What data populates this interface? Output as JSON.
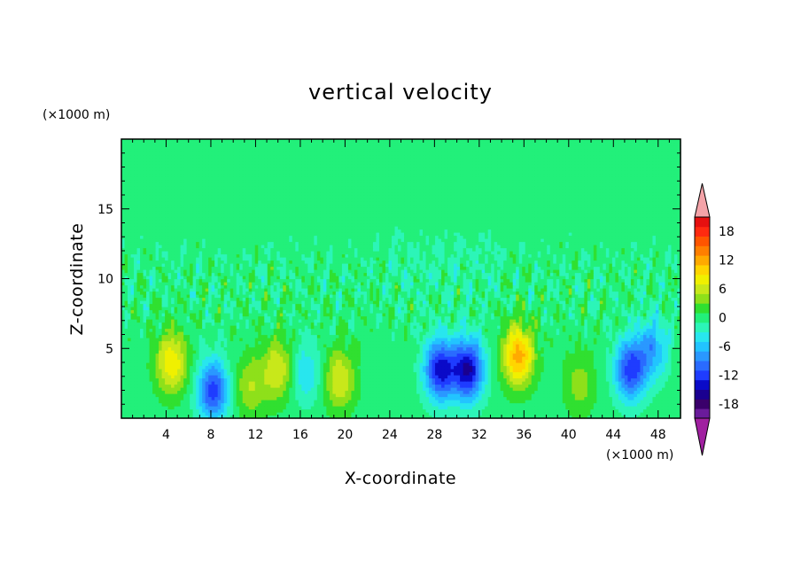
{
  "chart_data": {
    "type": "heatmap",
    "title": "vertical velocity",
    "xlabel": "X-coordinate",
    "ylabel": "Z-coordinate",
    "x_unit": "(×1000 m)",
    "y_unit": "(×1000 m)",
    "xlim": [
      0,
      50
    ],
    "ylim": [
      0,
      20
    ],
    "x_ticks": [
      4,
      8,
      12,
      16,
      20,
      24,
      28,
      32,
      36,
      40,
      44,
      48
    ],
    "y_ticks": [
      5,
      10,
      15
    ],
    "colorbar": {
      "min": -21,
      "max": 21,
      "step": 2,
      "tick_labels": [
        18,
        12,
        6,
        0,
        -6,
        -12,
        -18
      ],
      "extend": "both",
      "colors": {
        "over": "#f4a3a8",
        "under": "#a020a0"
      }
    },
    "features": [
      {
        "kind": "updraft",
        "x": 4.5,
        "z": 4.0,
        "peak": 9
      },
      {
        "kind": "downdraft",
        "x": 8.2,
        "z": 2.0,
        "peak": -12
      },
      {
        "kind": "updraft",
        "x": 11.5,
        "z": 2.3,
        "peak": 5
      },
      {
        "kind": "updraft",
        "x": 14.0,
        "z": 3.5,
        "peak": 7
      },
      {
        "kind": "downdraft",
        "x": 16.5,
        "z": 3.3,
        "peak": -5
      },
      {
        "kind": "updraft",
        "x": 19.5,
        "z": 2.8,
        "peak": 7
      },
      {
        "kind": "downdraft",
        "x": 28.5,
        "z": 3.5,
        "peak": -14
      },
      {
        "kind": "downdraft",
        "x": 31.0,
        "z": 3.5,
        "peak": -15
      },
      {
        "kind": "updraft",
        "x": 35.5,
        "z": 4.5,
        "peak": 12
      },
      {
        "kind": "updraft",
        "x": 41.0,
        "z": 2.5,
        "peak": 4
      },
      {
        "kind": "downdraft",
        "x": 45.5,
        "z": 3.5,
        "peak": -12
      },
      {
        "kind": "downdraft",
        "x": 47.5,
        "z": 5.0,
        "peak": -7
      }
    ]
  }
}
